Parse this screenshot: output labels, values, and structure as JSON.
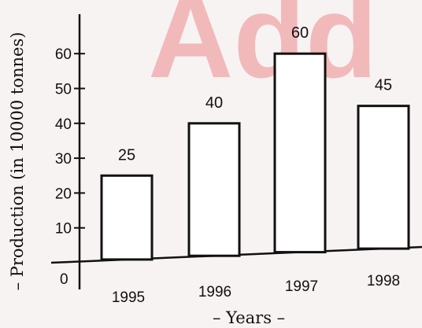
{
  "watermark": {
    "text": "Add",
    "color": "#f2b9bb"
  },
  "chart_data": {
    "type": "bar",
    "categories": [
      "1995",
      "1996",
      "1997",
      "1998"
    ],
    "values": [
      25,
      40,
      60,
      45
    ],
    "data_labels": [
      "25",
      "40",
      "60",
      "45"
    ],
    "title": "",
    "xlabel": "– Years –",
    "ylabel": "– Production (in 10000 tonnes)",
    "ylim": [
      0,
      60
    ],
    "yticks": [
      10,
      20,
      30,
      40,
      50,
      60
    ],
    "origin_label": "0",
    "grid": false,
    "legend": "none",
    "bar_fill": "#ffffff",
    "bar_stroke": "#111111"
  }
}
